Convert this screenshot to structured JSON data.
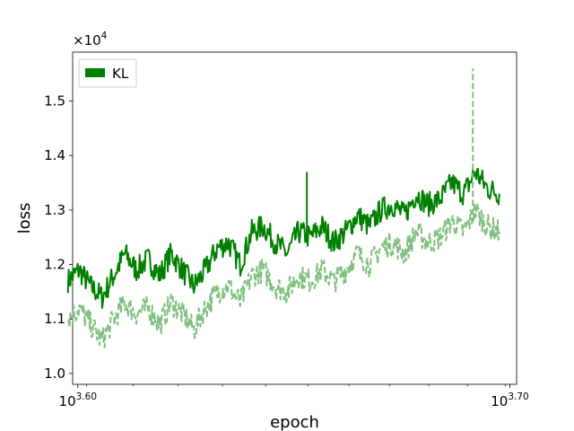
{
  "chart_data": {
    "type": "line",
    "title": "",
    "xlabel": "epoch",
    "ylabel": "loss",
    "x_scale": "log",
    "y_multiplier": "×10",
    "y_multiplier_exp": "4",
    "xlim": [
      3970,
      5030
    ],
    "ylim": [
      0.98,
      1.59
    ],
    "x_ticks": [
      {
        "value": 3981,
        "base": "10",
        "exp": "3.60"
      },
      {
        "value": 5012,
        "base": "10",
        "exp": "3.70"
      }
    ],
    "y_ticks": [
      1.0,
      1.1,
      1.2,
      1.3,
      1.4,
      1.5
    ],
    "y_tick_labels": [
      "1.0",
      "1.1",
      "1.2",
      "1.3",
      "1.4",
      "1.5"
    ],
    "grid": false,
    "legend": {
      "position": "top-left",
      "entries": [
        "KL"
      ]
    },
    "colors": {
      "kl_solid": "#008000",
      "kl_dashed": "#7fbf7f"
    },
    "series": [
      {
        "name": "KL",
        "style": "solid",
        "color": "#008000",
        "x": [
          3960,
          3984,
          4008,
          4033,
          4058,
          4082,
          4107,
          4133,
          4158,
          4184,
          4209,
          4235,
          4261,
          4288,
          4314,
          4341,
          4368,
          4395,
          4423,
          4451,
          4478,
          4506,
          4535,
          4563,
          4592,
          4621,
          4650,
          4679,
          4709,
          4738,
          4768,
          4798,
          4829,
          4859,
          4890,
          4921,
          4952,
          4984
        ],
        "values": [
          1.17,
          1.19,
          1.16,
          1.14,
          1.18,
          1.22,
          1.19,
          1.21,
          1.18,
          1.22,
          1.19,
          1.16,
          1.19,
          1.23,
          1.24,
          1.2,
          1.26,
          1.27,
          1.24,
          1.22,
          1.26,
          1.25,
          1.27,
          1.24,
          1.26,
          1.29,
          1.27,
          1.3,
          1.31,
          1.29,
          1.33,
          1.31,
          1.32,
          1.35,
          1.33,
          1.37,
          1.34,
          1.33
        ]
      },
      {
        "name": "",
        "style": "dashed",
        "color": "#7fbf7f",
        "x": [
          3960,
          3984,
          4008,
          4033,
          4058,
          4082,
          4107,
          4133,
          4158,
          4184,
          4209,
          4235,
          4261,
          4288,
          4314,
          4341,
          4368,
          4395,
          4423,
          4451,
          4478,
          4506,
          4535,
          4563,
          4592,
          4621,
          4650,
          4679,
          4709,
          4738,
          4768,
          4798,
          4829,
          4859,
          4890,
          4921,
          4952,
          4984
        ],
        "values": [
          1.1,
          1.12,
          1.09,
          1.06,
          1.1,
          1.13,
          1.11,
          1.12,
          1.09,
          1.13,
          1.11,
          1.08,
          1.12,
          1.15,
          1.16,
          1.13,
          1.18,
          1.19,
          1.16,
          1.15,
          1.18,
          1.17,
          1.19,
          1.17,
          1.19,
          1.22,
          1.2,
          1.23,
          1.24,
          1.22,
          1.26,
          1.24,
          1.25,
          1.28,
          1.26,
          1.3,
          1.27,
          1.26
        ]
      }
    ],
    "spikes": [
      {
        "x": 4498,
        "value": 1.37,
        "series": "solid"
      },
      {
        "x": 4914,
        "value": 1.56,
        "series": "dashed"
      }
    ]
  }
}
